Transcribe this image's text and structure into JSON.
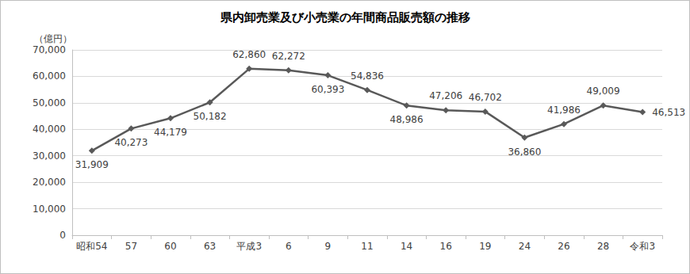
{
  "chart_data": {
    "type": "line",
    "title": "県内卸売業及び小売業の年間商品販売額の推移",
    "y_label": "（億円）",
    "categories": [
      "昭和54",
      "57",
      "60",
      "63",
      "平成3",
      "6",
      "9",
      "11",
      "14",
      "16",
      "19",
      "24",
      "26",
      "28",
      "令和3"
    ],
    "values": [
      31909,
      40273,
      44179,
      50182,
      62860,
      62272,
      60393,
      54836,
      48986,
      47206,
      46702,
      36860,
      41986,
      49009,
      46513
    ],
    "value_labels": [
      "31,909",
      "40,273",
      "44,179",
      "50,182",
      "62,860",
      "62,272",
      "60,393",
      "54,836",
      "48,986",
      "47,206",
      "46,702",
      "36,860",
      "41,986",
      "49,009",
      "46,513"
    ],
    "color": "#595959",
    "marker": "diamond",
    "line_style": "solid",
    "data_labels": true,
    "grid": true,
    "ylim": [
      0,
      70000
    ],
    "yticks": [
      0,
      {
        "value": 10000,
        "label": "10,000"
      },
      {
        "value": 20000,
        "label": "20,000"
      },
      {
        "value": 30000,
        "label": "30,000"
      },
      {
        "value": 40000,
        "label": "40,000"
      },
      {
        "value": 50000,
        "label": "50,000"
      },
      {
        "value": 60000,
        "label": "60,000"
      },
      {
        "value": 70000,
        "label": "70,000"
      }
    ]
  }
}
